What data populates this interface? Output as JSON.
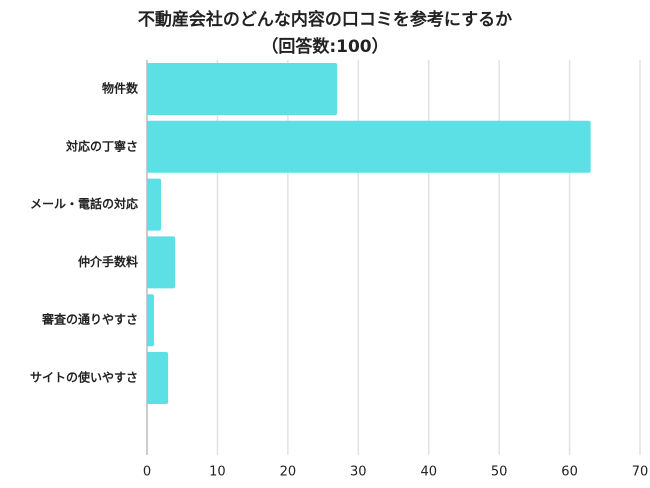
{
  "chart_data": {
    "type": "bar",
    "orientation": "horizontal",
    "title": "不動産会社のどんな内容の口コミを参考にするか",
    "subtitle": "（回答数:100）",
    "categories": [
      "物件数",
      "対応の丁寧さ",
      "メール・電話の対応",
      "仲介手数料",
      "審査の通りやすさ",
      "サイトの使いやすさ"
    ],
    "values": [
      27,
      63,
      2,
      4,
      1,
      3
    ],
    "color": "#5ce0e6",
    "xlim": [
      0,
      70
    ],
    "xticks": [
      0,
      10,
      20,
      30,
      40,
      50,
      60,
      70
    ],
    "grid": true
  }
}
